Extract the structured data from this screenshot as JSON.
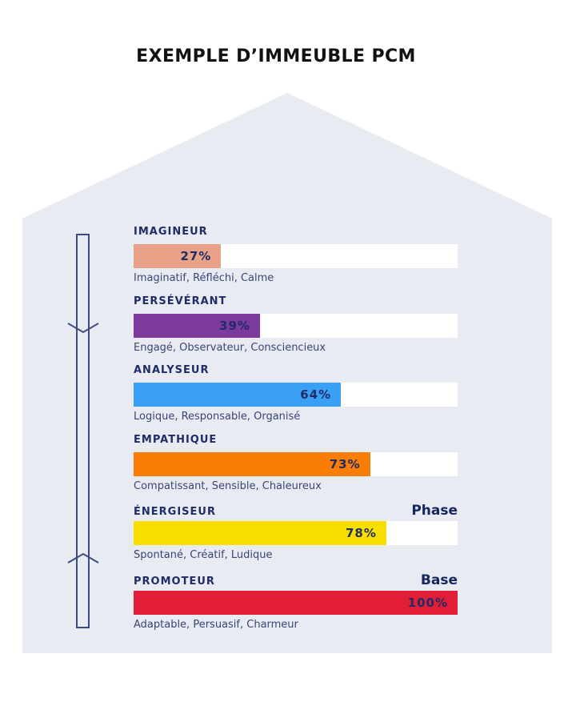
{
  "page": {
    "title": "EXEMPLE D’IMMEUBLE PCM"
  },
  "colors": {
    "house_background": "#E9EBF2",
    "navy_text": "#1F2C66",
    "arrow_outline": "#3E4B7E",
    "bar_track": "#FFFFFF"
  },
  "chart_data": {
    "type": "bar",
    "orientation": "horizontal",
    "title": "EXEMPLE D’IMMEUBLE PCM",
    "xlim": [
      0,
      100
    ],
    "unit": "%",
    "grid": false,
    "rows": [
      {
        "label": "IMAGINEUR",
        "value": 27,
        "value_label": "27%",
        "traits": "Imaginatif, Réfléchi, Calme",
        "color": "#E8A288"
      },
      {
        "label": "PERSÉVÉRANT",
        "value": 39,
        "value_label": "39%",
        "traits": "Engagé, Observateur, Consciencieux",
        "color": "#7C3A9D"
      },
      {
        "label": "ANALYSEUR",
        "value": 64,
        "value_label": "64%",
        "traits": "Logique, Responsable, Organisé",
        "color": "#3AA0F6"
      },
      {
        "label": "EMPATHIQUE",
        "value": 73,
        "value_label": "73%",
        "traits": "Compatissant, Sensible, Chaleureux",
        "color": "#FA7D06"
      },
      {
        "label": "ÉNERGISEUR",
        "value": 78,
        "value_label": "78%",
        "traits": "Spontané, Créatif, Ludique",
        "color": "#F8DF00",
        "tag": "Phase"
      },
      {
        "label": "PROMOTEUR",
        "value": 100,
        "value_label": "100%",
        "traits": "Adaptable, Persuasif, Charmeur",
        "color": "#E21D36",
        "tag": "Base"
      }
    ]
  }
}
